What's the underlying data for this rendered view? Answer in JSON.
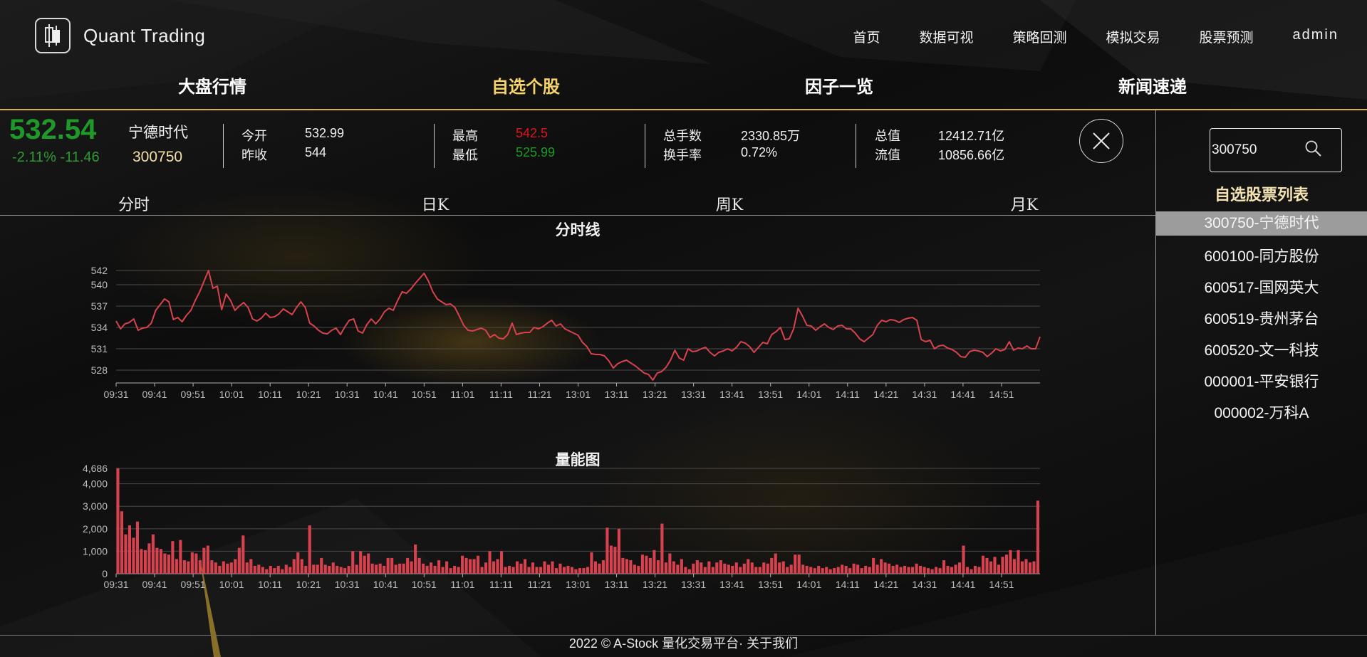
{
  "app": {
    "logo_text": "Quant Trading"
  },
  "nav": {
    "items": [
      "首页",
      "数据可视",
      "策略回测",
      "模拟交易",
      "股票预测"
    ],
    "user": "admin"
  },
  "subtabs": [
    "大盘行情",
    "自选个股",
    "因子一览",
    "新闻速递"
  ],
  "subtab_active": "自选个股",
  "quote": {
    "price": "532.54",
    "change": "-2.11% -11.46",
    "name": "宁德时代",
    "code": "300750",
    "open_label": "今开",
    "open": "532.99",
    "prev_close_label": "昨收",
    "prev_close": "544",
    "high_label": "最高",
    "high": "542.5",
    "low_label": "最低",
    "low": "525.99",
    "volume_label": "总手数",
    "volume": "2330.85万",
    "turnover_label": "换手率",
    "turnover": "0.72%",
    "total_cap_label": "总值",
    "total_cap": "12412.71亿",
    "float_cap_label": "流值",
    "float_cap": "10856.66亿",
    "colors": {
      "high": "#e0141e",
      "low": "#1b9a24",
      "down": "#1f9a2a"
    }
  },
  "period_tabs": [
    "分时",
    "日K",
    "周K",
    "月K"
  ],
  "sidebar": {
    "search_value": "300750",
    "list_title": "自选股票列表",
    "items": [
      "300750-宁德时代",
      "600100-同方股份",
      "600517-国网英大",
      "600519-贵州茅台",
      "600520-文一科技",
      "000001-平安银行",
      "000002-万科A"
    ],
    "selected": "300750-宁德时代"
  },
  "footer": {
    "text": "2022 © A-Stock 量化交易平台· 关于我们"
  },
  "chart_data": [
    {
      "type": "line",
      "title": "分时线",
      "color": "#d8424e",
      "x_ticks": [
        "09:31",
        "09:41",
        "09:51",
        "10:01",
        "10:11",
        "10:21",
        "10:31",
        "10:41",
        "10:51",
        "11:01",
        "11:11",
        "11:21",
        "13:01",
        "13:11",
        "13:21",
        "13:31",
        "13:41",
        "13:51",
        "14:01",
        "14:11",
        "14:21",
        "14:31",
        "14:41",
        "14:51"
      ],
      "y_ticks": [
        528,
        531,
        534,
        537,
        540,
        542
      ],
      "ylim": [
        526.2,
        542.8
      ],
      "values": [
        534.9,
        533.8,
        534.5,
        534.7,
        535.2,
        533.6,
        533.9,
        534.0,
        534.6,
        536.4,
        537.2,
        538.0,
        537.6,
        535.1,
        535.4,
        534.8,
        535.7,
        536.4,
        537.8,
        539.0,
        540.5,
        542.0,
        539.5,
        539.8,
        536.5,
        538.7,
        537.8,
        536.4,
        537.0,
        537.5,
        536.8,
        535.2,
        534.9,
        535.3,
        536.0,
        535.4,
        535.5,
        535.9,
        536.6,
        536.2,
        535.8,
        536.8,
        537.6,
        536.8,
        534.6,
        534.2,
        533.6,
        533.2,
        533.1,
        533.6,
        533.9,
        533.0,
        534.1,
        535.0,
        535.2,
        533.5,
        533.2,
        534.4,
        535.2,
        534.5,
        535.2,
        536.2,
        536.7,
        536.4,
        537.8,
        539.0,
        538.8,
        539.4,
        540.2,
        540.9,
        541.6,
        540.5,
        539.0,
        538.0,
        537.6,
        537.2,
        537.3,
        536.8,
        535.6,
        534.3,
        533.6,
        533.5,
        533.7,
        533.9,
        533.6,
        532.6,
        533.0,
        532.5,
        532.4,
        533.0,
        534.6,
        533.0,
        533.2,
        533.3,
        533.3,
        534.0,
        533.8,
        534.1,
        534.6,
        535.0,
        534.2,
        534.5,
        533.8,
        533.5,
        533.2,
        532.9,
        531.9,
        531.3,
        530.3,
        530.2,
        530.2,
        530.0,
        529.3,
        528.3,
        528.9,
        529.2,
        529.4,
        529.0,
        528.6,
        528.1,
        527.6,
        527.4,
        526.6,
        527.6,
        527.8,
        528.4,
        529.4,
        530.8,
        529.7,
        529.4,
        531.0,
        530.6,
        530.7,
        531.0,
        531.2,
        530.5,
        530.0,
        530.5,
        530.7,
        531.0,
        530.7,
        531.2,
        532.0,
        531.8,
        531.3,
        530.5,
        531.2,
        531.9,
        531.7,
        533.0,
        533.4,
        534.0,
        532.3,
        532.4,
        533.8,
        536.7,
        535.6,
        534.3,
        534.2,
        533.6,
        534.1,
        534.5,
        534.0,
        533.7,
        534.2,
        534.3,
        533.8,
        533.8,
        533.2,
        532.4,
        532.0,
        532.5,
        533.0,
        534.3,
        535.0,
        534.8,
        535.1,
        535.0,
        534.7,
        535.1,
        535.3,
        535.4,
        535.0,
        532.3,
        532.0,
        532.2,
        531.0,
        531.4,
        531.5,
        531.1,
        530.9,
        530.5,
        529.9,
        529.8,
        530.6,
        530.8,
        530.7,
        530.5,
        529.9,
        530.4,
        531.0,
        530.7,
        530.9,
        532.0,
        530.8,
        531.1,
        531.0,
        531.4,
        531.0,
        531.0,
        532.7
      ],
      "xlabel": "",
      "ylabel": ""
    },
    {
      "type": "bar",
      "title": "量能图",
      "color": "#d8424e",
      "x_ticks": [
        "09:31",
        "09:41",
        "09:51",
        "10:01",
        "10:11",
        "10:21",
        "10:31",
        "10:41",
        "10:51",
        "11:01",
        "11:11",
        "11:21",
        "13:01",
        "13:11",
        "13:21",
        "13:31",
        "13:41",
        "13:51",
        "14:01",
        "14:11",
        "14:21",
        "14:31",
        "14:41",
        "14:51"
      ],
      "y_ticks": [
        0,
        1000,
        2000,
        3000,
        4000,
        4686
      ],
      "ylim": [
        0,
        4686
      ],
      "values": [
        4686,
        2780,
        1750,
        2150,
        1600,
        2320,
        1100,
        1050,
        1350,
        1750,
        1150,
        1100,
        900,
        850,
        1450,
        650,
        1500,
        600,
        550,
        950,
        900,
        600,
        1150,
        1250,
        600,
        500,
        350,
        550,
        450,
        500,
        650,
        1150,
        1700,
        500,
        650,
        350,
        400,
        300,
        200,
        350,
        250,
        350,
        200,
        400,
        300,
        650,
        950,
        650,
        350,
        2150,
        400,
        400,
        700,
        400,
        350,
        500,
        350,
        300,
        250,
        350,
        1000,
        400,
        1000,
        800,
        900,
        450,
        400,
        450,
        350,
        700,
        700,
        400,
        450,
        450,
        700,
        550,
        1300,
        700,
        450,
        350,
        500,
        350,
        600,
        300,
        550,
        250,
        350,
        300,
        800,
        700,
        650,
        650,
        800,
        300,
        500,
        1000,
        550,
        650,
        1000,
        300,
        350,
        300,
        550,
        450,
        650,
        300,
        500,
        300,
        300,
        550,
        400,
        550,
        250,
        450,
        300,
        350,
        300,
        200,
        250,
        250,
        300,
        950,
        550,
        450,
        600,
        2050,
        1250,
        1200,
        2000,
        700,
        650,
        600,
        400,
        350,
        850,
        800,
        700,
        1050,
        600,
        2230,
        500,
        900,
        550,
        400,
        650,
        300,
        200,
        450,
        600,
        500,
        300,
        550,
        300,
        500,
        600,
        450,
        400,
        350,
        500,
        300,
        450,
        650,
        500,
        300,
        300,
        500,
        450,
        700,
        900,
        500,
        550,
        300,
        400,
        850,
        850,
        400,
        350,
        300,
        250,
        350,
        250,
        300,
        200,
        250,
        300,
        400,
        350,
        250,
        450,
        400,
        250,
        350,
        300,
        700,
        400,
        650,
        500,
        450,
        350,
        400,
        300,
        350,
        300,
        300,
        450,
        350,
        300,
        250,
        200,
        300,
        250,
        600,
        350,
        300,
        400,
        500,
        1250,
        300,
        200,
        350,
        300,
        800,
        700,
        550,
        750,
        400,
        750,
        850,
        1050,
        650,
        1050,
        550,
        650,
        500,
        550,
        3250
      ],
      "xlabel": "",
      "ylabel": ""
    }
  ]
}
